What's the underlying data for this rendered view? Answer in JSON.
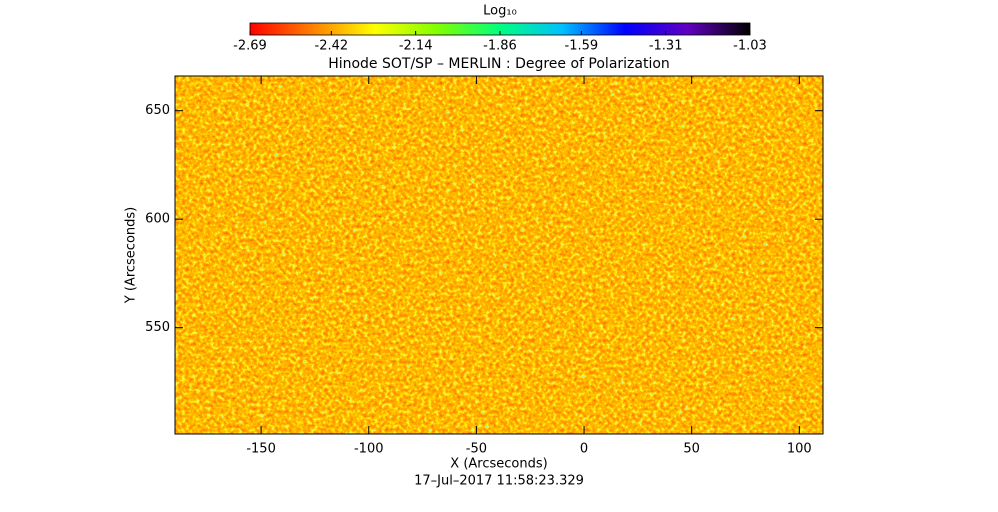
{
  "chart_data": {
    "type": "heatmap",
    "title": "Hinode SOT/SP – MERLIN : Degree of Polarization",
    "x_label": "X (Arcseconds)",
    "y_label": "Y (Arcseconds)",
    "timestamp": "17–Jul–2017 11:58:23.329",
    "colorbar_label": "Log₁₀",
    "clim": [
      -2.69,
      -1.03
    ],
    "cticks": [
      -2.69,
      -2.42,
      -2.14,
      -1.86,
      -1.59,
      -1.31,
      -1.03
    ],
    "colormap": [
      "#ff0000",
      "#ff8000",
      "#ffff00",
      "#80ff00",
      "#00ff80",
      "#00c0ff",
      "#0000ff",
      "#6000c0",
      "#000000"
    ],
    "xlim": [
      -190,
      111
    ],
    "xticks": [
      -150,
      -100,
      -50,
      0,
      50,
      100
    ],
    "ylim": [
      501,
      666
    ],
    "yticks": [
      550,
      600,
      650
    ]
  }
}
